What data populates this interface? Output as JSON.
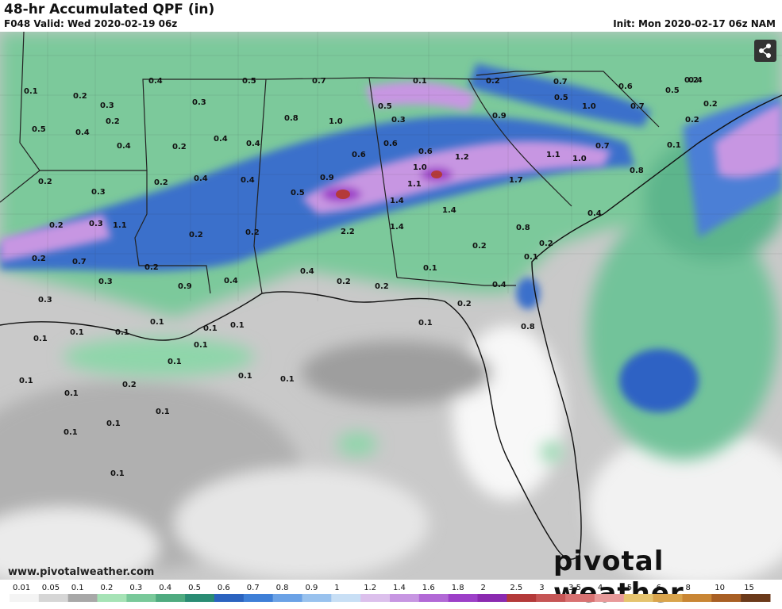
{
  "header": {
    "title": "48-hr Accumulated QPF (in)",
    "valid": "F048 Valid: Wed 2020-02-19 06z",
    "init": "Init: Mon 2020-02-17 06z NAM"
  },
  "footer": {
    "website": "www.pivotalweather.com",
    "brand": "pivotal weather"
  },
  "legend": {
    "labels": [
      "0.01",
      "0.05",
      "0.1",
      "0.2",
      "0.3",
      "0.4",
      "0.5",
      "0.6",
      "0.7",
      "0.8",
      "0.9",
      "1",
      "1.2",
      "1.4",
      "1.6",
      "1.8",
      "2",
      "2.5",
      "3",
      "3.5",
      "4",
      "5",
      "6",
      "8",
      "10",
      "15"
    ],
    "colors": [
      "#f4f4f4",
      "#d6d6d6",
      "#a8a8a8",
      "#a6e3b6",
      "#79c99a",
      "#4fab80",
      "#2a8c74",
      "#2b63bf",
      "#3e7fd7",
      "#6ba2e6",
      "#99c2ee",
      "#c8dff5",
      "#dcc0ec",
      "#c796e2",
      "#b269d6",
      "#9d40c8",
      "#8b2ab0",
      "#b43a3a",
      "#c65555",
      "#d87272",
      "#e89a9a",
      "#e5c36e",
      "#d9a44c",
      "#c98634",
      "#a85f24",
      "#6b3a1a"
    ]
  },
  "map_labels": [
    "0.1",
    "0.2",
    "0.3",
    "0.2",
    "0.4",
    "0.5",
    "0.4",
    "0.4",
    "0.3",
    "0.2",
    "0.4",
    "0.5",
    "0.8",
    "1.0",
    "0.7",
    "0.4",
    "0.6",
    "0.5",
    "0.3",
    "0.1",
    "0.2",
    "0.7",
    "0.5",
    "0.6",
    "0.5",
    "0.4",
    "0.7",
    "1.0",
    "0.2",
    "0.4",
    "0.3",
    "0.2",
    "0.4",
    "0.9",
    "0.6",
    "0.6",
    "1.2",
    "0.9",
    "1.1",
    "1.0",
    "0.7",
    "0.8",
    "0.3",
    "0.2",
    "0.2",
    "0.5",
    "1.0",
    "1.1",
    "1.4",
    "1.7",
    "0.4",
    "0.8",
    "0.2",
    "2.2",
    "1.4",
    "1.4",
    "1.1",
    "0.2",
    "0.2",
    "0.7",
    "0.4",
    "0.3",
    "0.9",
    "0.4",
    "0.2",
    "0.2",
    "0.1",
    "0.2",
    "0.4",
    "0.1",
    "0.2",
    "0.2",
    "0.2",
    "0.2",
    "0.2",
    "0.1",
    "0.3",
    "0.1",
    "0.1",
    "0.1",
    "0.1",
    "0.1",
    "0.1",
    "0.1",
    "0.1",
    "0.1",
    "0.1",
    "0.2",
    "0.1",
    "0.1",
    "0.1",
    "0.1",
    "0.1",
    "0.1",
    "0.1",
    "0.8"
  ]
}
